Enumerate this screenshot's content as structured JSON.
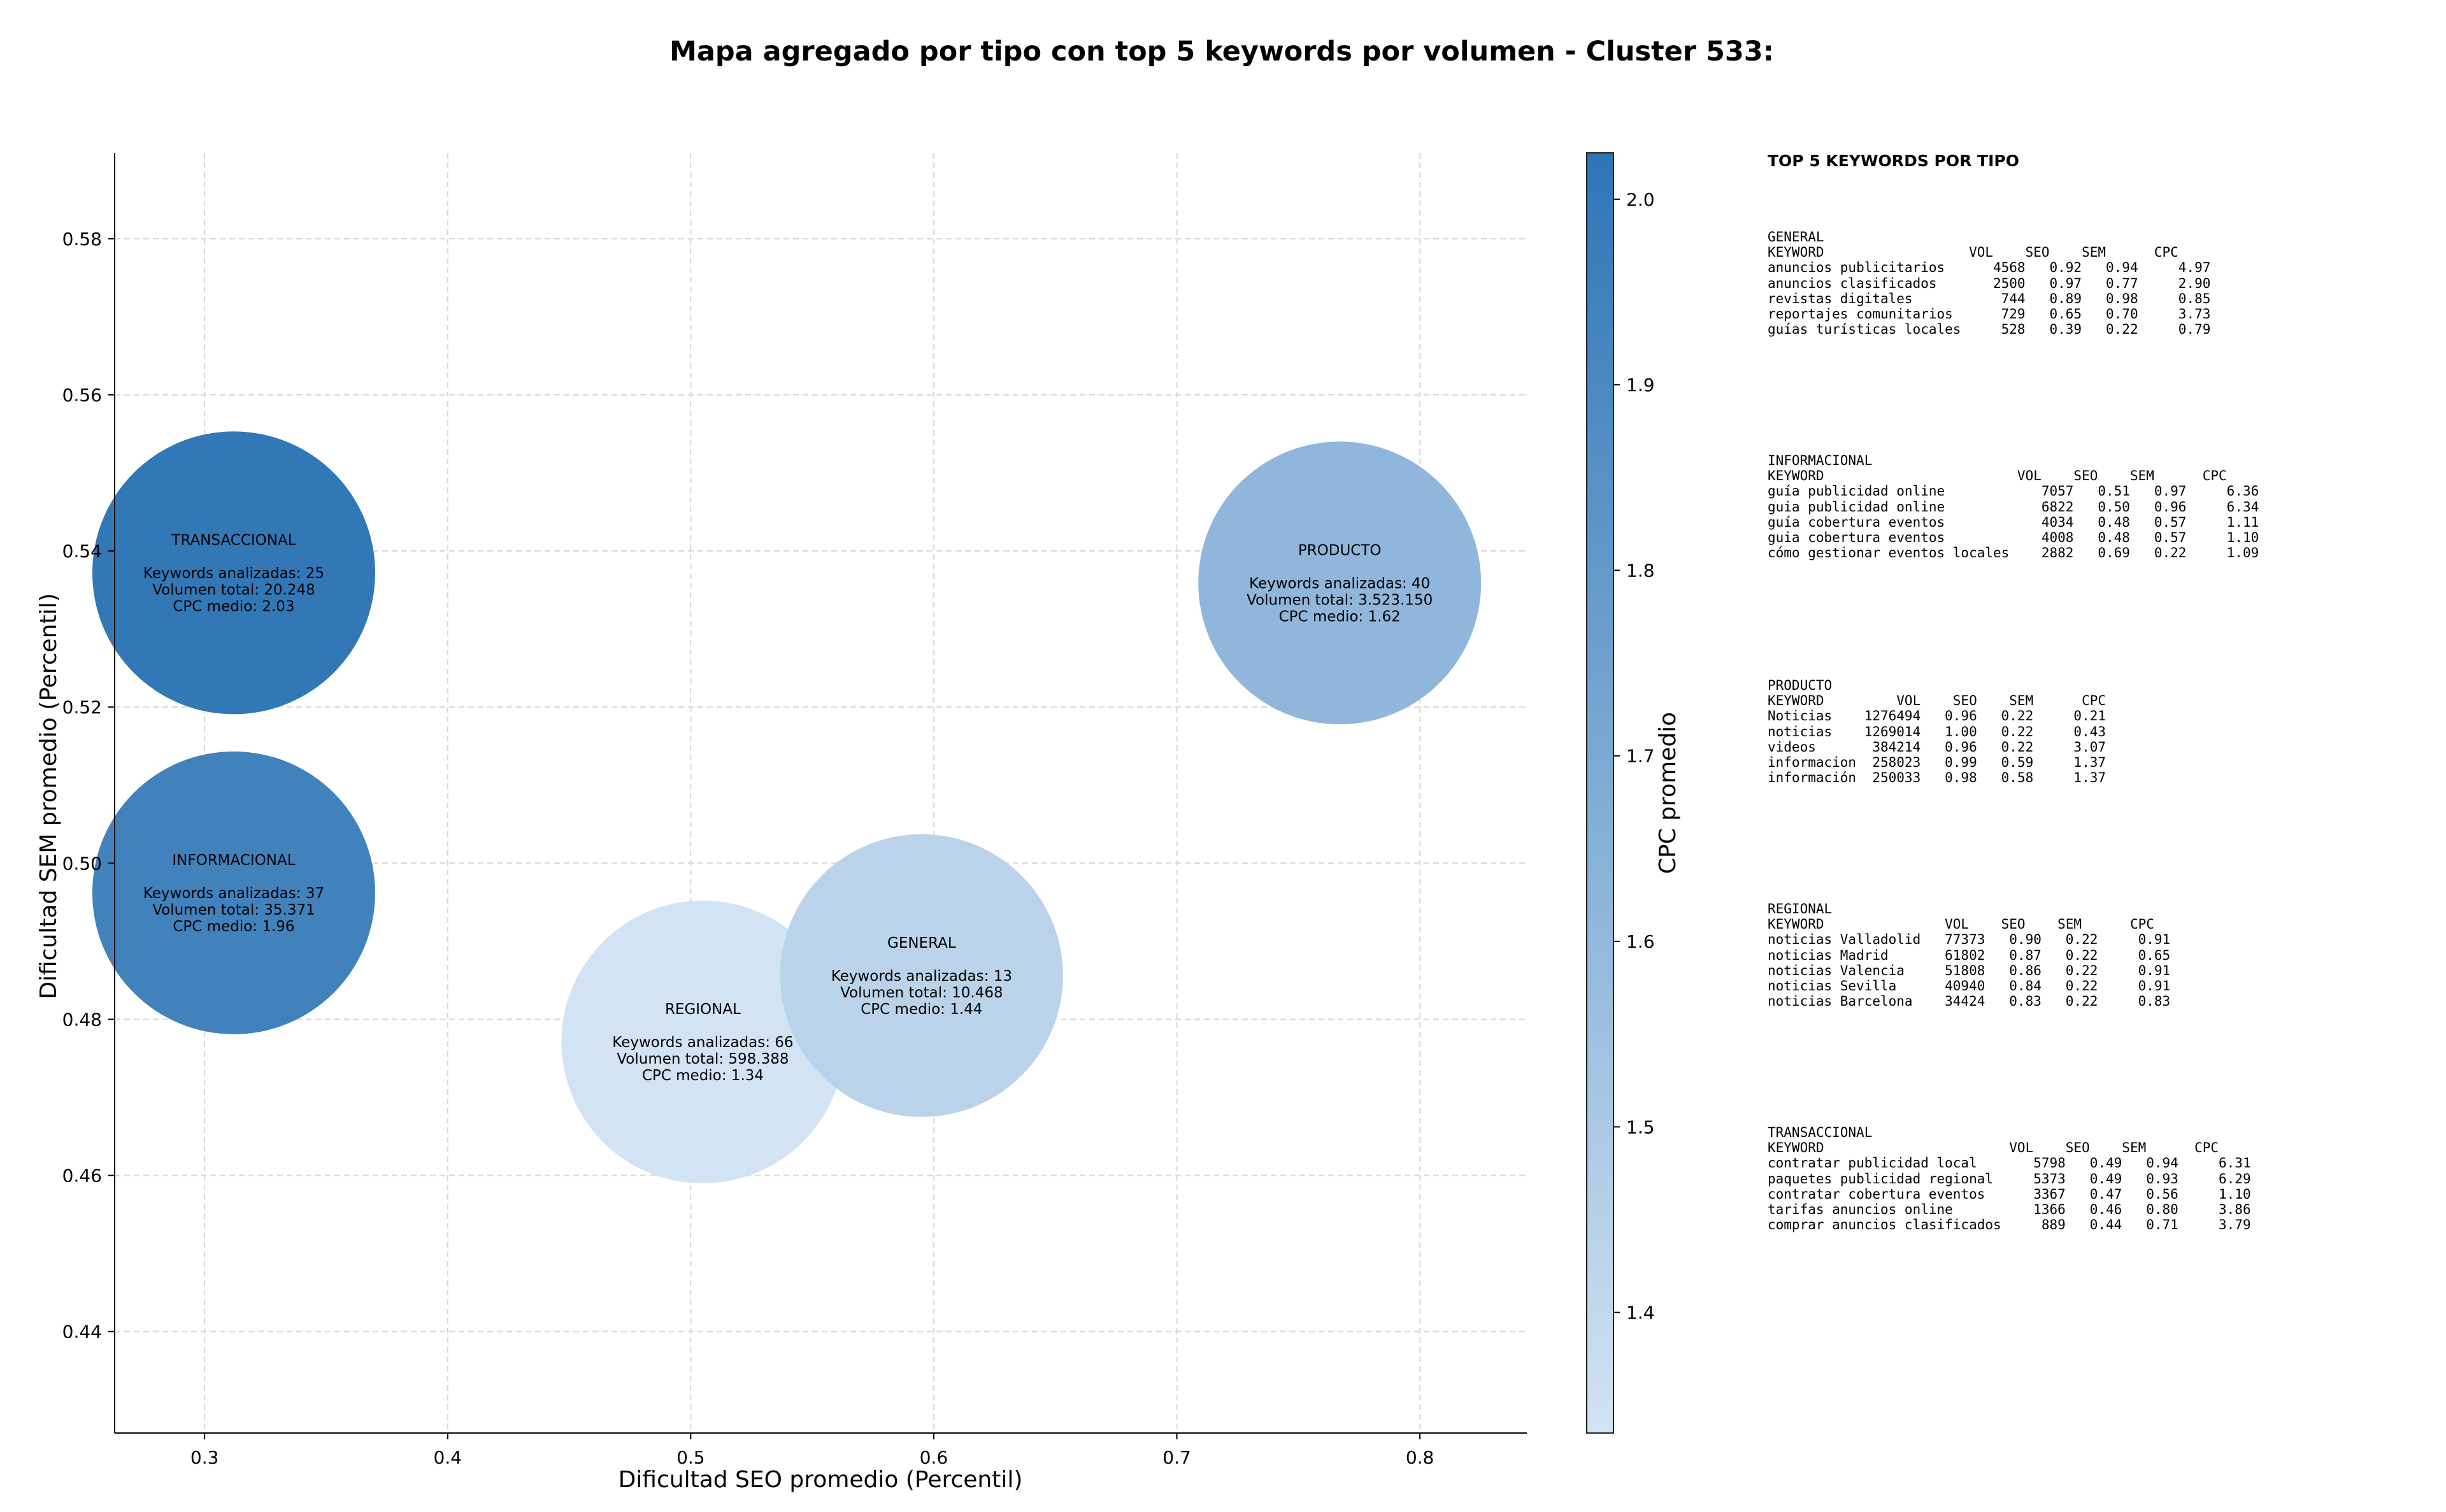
{
  "chart_data": {
    "type": "scatter",
    "title": "Mapa agregado por tipo con top 5 keywords por volumen - Cluster 533:",
    "xlabel": "Dificultad SEO promedio (Percentil)",
    "ylabel": "Dificultad SEM promedio (Percentil)",
    "xlim": [
      0.263,
      0.844
    ],
    "ylim": [
      0.427,
      0.591
    ],
    "xticks": [
      0.3,
      0.4,
      0.5,
      0.6,
      0.7,
      0.8
    ],
    "xtick_labels": [
      "0.3",
      "0.4",
      "0.5",
      "0.6",
      "0.7",
      "0.8"
    ],
    "yticks": [
      0.44,
      0.46,
      0.48,
      0.5,
      0.52,
      0.54,
      0.56,
      0.58
    ],
    "ytick_labels": [
      "0.44",
      "0.46",
      "0.48",
      "0.50",
      "0.52",
      "0.54",
      "0.56",
      "0.58"
    ],
    "grid": true,
    "colorbar": {
      "label": "CPC promedio",
      "min": 1.335,
      "max": 2.025,
      "ticks": [
        1.4,
        1.5,
        1.6,
        1.7,
        1.8,
        1.9,
        2.0
      ],
      "tick_labels": [
        "1.4",
        "1.5",
        "1.6",
        "1.7",
        "1.8",
        "1.9",
        "2.0"
      ],
      "color_low": "#d2e3f3",
      "color_high": "#2e75b6"
    },
    "points": [
      {
        "name": "TRANSACCIONAL",
        "x": 0.312,
        "y": 0.5372,
        "cpc": 2.03,
        "lines": [
          "TRANSACCIONAL",
          "",
          "Keywords analizadas: 25",
          "Volumen total: 20.248",
          "CPC medio: 2.03"
        ]
      },
      {
        "name": "INFORMACIONAL",
        "x": 0.312,
        "y": 0.4962,
        "cpc": 1.96,
        "lines": [
          "INFORMACIONAL",
          "",
          "Keywords analizadas: 37",
          "Volumen total: 35.371",
          "CPC medio: 1.96"
        ]
      },
      {
        "name": "REGIONAL",
        "x": 0.505,
        "y": 0.4771,
        "cpc": 1.34,
        "lines": [
          "REGIONAL",
          "",
          "Keywords analizadas: 66",
          "Volumen total: 598.388",
          "CPC medio: 1.34"
        ]
      },
      {
        "name": "GENERAL",
        "x": 0.595,
        "y": 0.4856,
        "cpc": 1.44,
        "lines": [
          "GENERAL",
          "",
          "Keywords analizadas: 13",
          "Volumen total: 10.468",
          "CPC medio: 1.44"
        ]
      },
      {
        "name": "PRODUCTO",
        "x": 0.767,
        "y": 0.5359,
        "cpc": 1.62,
        "lines": [
          "PRODUCTO",
          "",
          "Keywords analizadas: 40",
          "Volumen total: 3.523.150",
          "CPC medio: 1.62"
        ]
      }
    ]
  },
  "side_panel": {
    "heading": "TOP 5 KEYWORDS POR TIPO",
    "tables": [
      {
        "text": "GENERAL\nKEYWORD                  VOL    SEO    SEM      CPC\nanuncios publicitarios      4568   0.92   0.94     4.97\nanuncios clasificados       2500   0.97   0.77     2.90\nrevistas digitales           744   0.89   0.98     0.85\nreportajes comunitarios      729   0.65   0.70     3.73\nguías turísticas locales     528   0.39   0.22     0.79"
      },
      {
        "text": "INFORMACIONAL\nKEYWORD                        VOL    SEO    SEM      CPC\nguía publicidad online            7057   0.51   0.97     6.36\nguia publicidad online            6822   0.50   0.96     6.34\nguía cobertura eventos            4034   0.48   0.57     1.11\nguia cobertura eventos            4008   0.48   0.57     1.10\ncómo gestionar eventos locales    2882   0.69   0.22     1.09"
      },
      {
        "text": "PRODUCTO\nKEYWORD         VOL    SEO    SEM      CPC\nNoticias    1276494   0.96   0.22     0.21\nnoticias    1269014   1.00   0.22     0.43\nvideos       384214   0.96   0.22     3.07\ninformacion  258023   0.99   0.59     1.37\ninformación  250033   0.98   0.58     1.37"
      },
      {
        "text": "REGIONAL\nKEYWORD               VOL    SEO    SEM      CPC\nnoticias Valladolid   77373   0.90   0.22     0.91\nnoticias Madrid       61802   0.87   0.22     0.65\nnoticias Valencia     51808   0.86   0.22     0.91\nnoticias Sevilla      40940   0.84   0.22     0.91\nnoticias Barcelona    34424   0.83   0.22     0.83"
      },
      {
        "text": "TRANSACCIONAL\nKEYWORD                       VOL    SEO    SEM      CPC\ncontratar publicidad local       5798   0.49   0.94     6.31\npaquetes publicidad regional     5373   0.49   0.93     6.29\ncontratar cobertura eventos      3367   0.47   0.56     1.10\ntarifas anuncios online          1366   0.46   0.80     3.86\ncomprar anuncios clasificados     889   0.44   0.71     3.79"
      }
    ]
  }
}
